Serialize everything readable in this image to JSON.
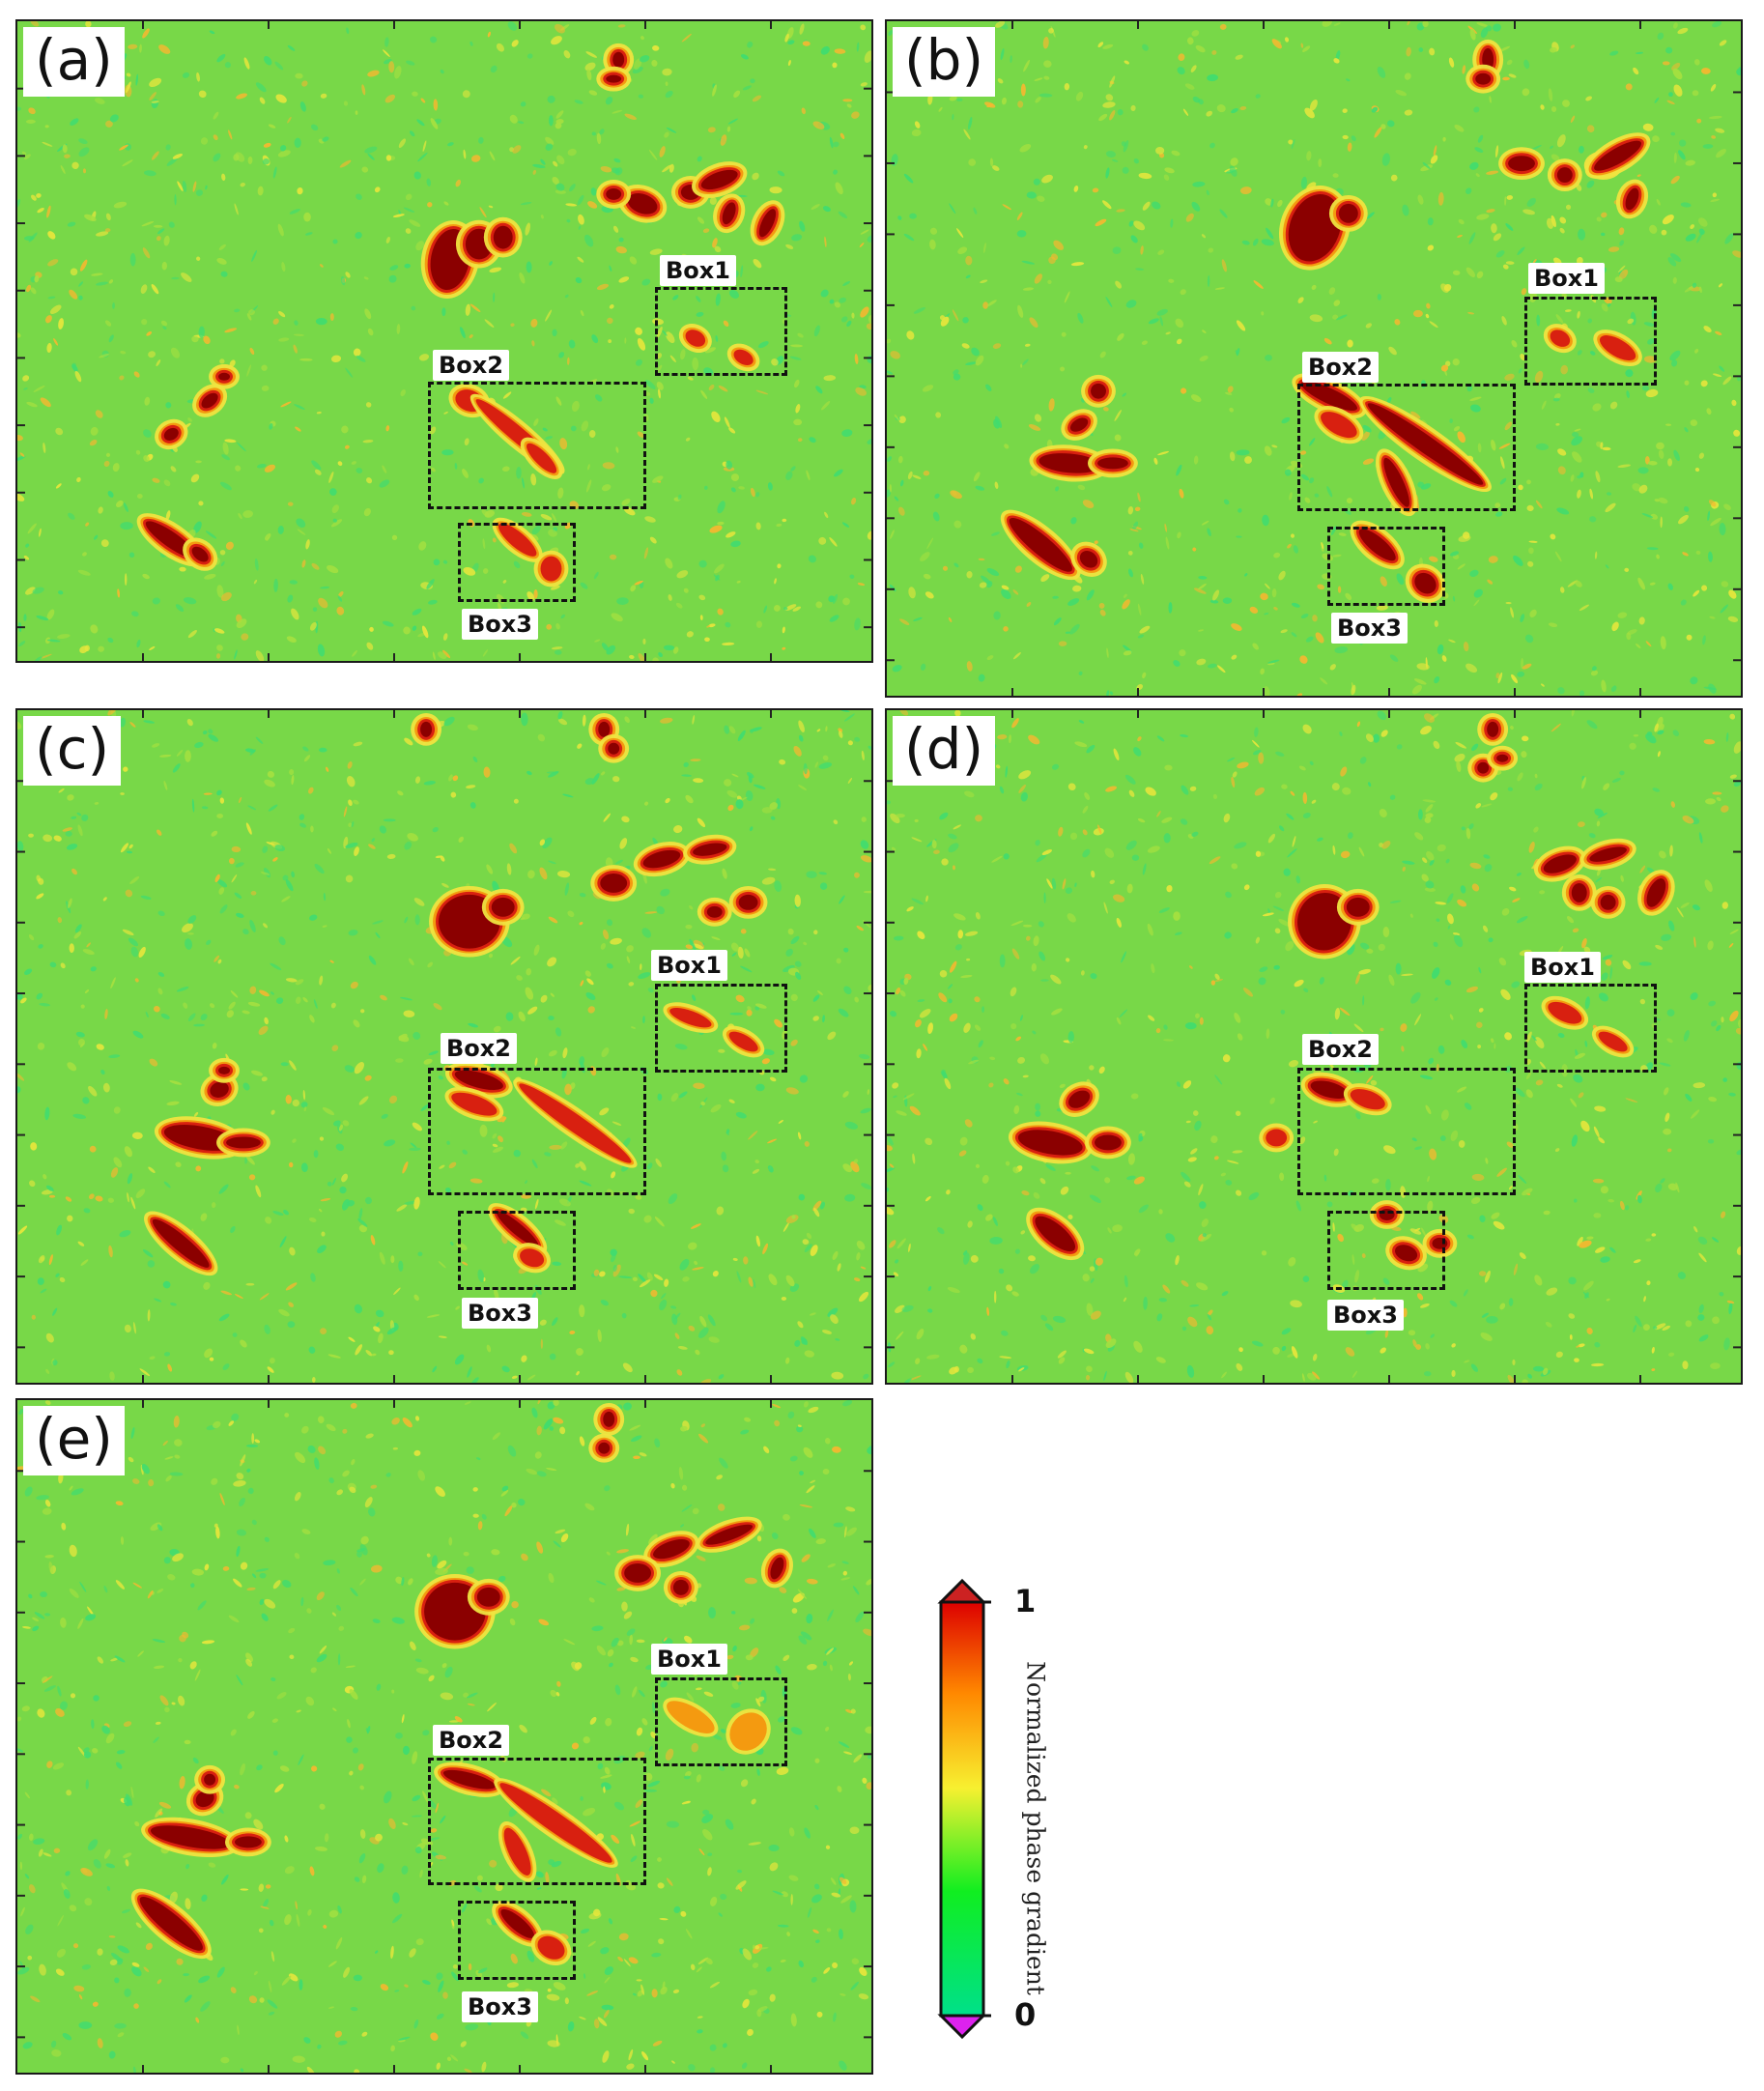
{
  "panels": [
    {
      "label": "(a)",
      "box_labels": [
        "Box1",
        "Box2",
        "Box3"
      ]
    },
    {
      "label": "(b)",
      "box_labels": [
        "Box1",
        "Box2",
        "Box3"
      ]
    },
    {
      "label": "(c)",
      "box_labels": [
        "Box1",
        "Box2",
        "Box3"
      ]
    },
    {
      "label": "(d)",
      "box_labels": [
        "Box1",
        "Box2",
        "Box3"
      ]
    },
    {
      "label": "(e)",
      "box_labels": [
        "Box1",
        "Box2",
        "Box3"
      ]
    }
  ],
  "colorbar": {
    "title": "Normalized phase gradient",
    "max_label": "1",
    "min_label": "0",
    "colors": [
      "#00e08a",
      "#10ee20",
      "#f7f030",
      "#ff8800",
      "#dd0000"
    ],
    "over_color": "#cc2222",
    "under_color": "#dd22ee"
  },
  "colors": {
    "background_field": "#78d848",
    "anomaly_dark": "#8b0000",
    "anomaly_red": "#d82010",
    "halo_yellow": "#f0e440",
    "halo_orange": "#f49a10"
  }
}
